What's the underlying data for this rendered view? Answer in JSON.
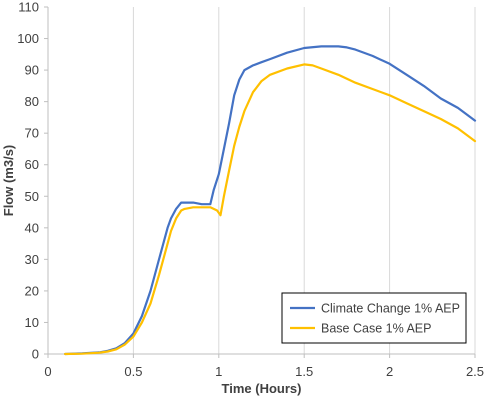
{
  "chart_data": {
    "type": "line",
    "xlabel": "Time (Hours)",
    "ylabel": "Flow (m3/s)",
    "xlim": [
      0,
      2.5
    ],
    "ylim": [
      0,
      110
    ],
    "x_ticks": [
      0,
      0.5,
      1,
      1.5,
      2,
      2.5
    ],
    "x_tick_labels": [
      "0",
      "0.5",
      "1",
      "1.5",
      "2",
      "2.5"
    ],
    "y_ticks": [
      0,
      10,
      20,
      30,
      40,
      50,
      60,
      70,
      80,
      90,
      100,
      110
    ],
    "y_tick_labels": [
      "0",
      "10",
      "20",
      "30",
      "40",
      "50",
      "60",
      "70",
      "80",
      "90",
      "100",
      "110"
    ],
    "grid": "vertical-major",
    "legend_position": "bottom-right",
    "series": [
      {
        "name": "Climate Change 1% AEP",
        "color": "#4472C4",
        "x": [
          0.1,
          0.2,
          0.3,
          0.35,
          0.4,
          0.45,
          0.5,
          0.55,
          0.6,
          0.65,
          0.7,
          0.72,
          0.75,
          0.78,
          0.8,
          0.85,
          0.9,
          0.95,
          0.97,
          1.0,
          1.03,
          1.06,
          1.09,
          1.12,
          1.15,
          1.2,
          1.25,
          1.3,
          1.4,
          1.5,
          1.6,
          1.7,
          1.75,
          1.8,
          1.9,
          2.0,
          2.1,
          2.2,
          2.3,
          2.4,
          2.5
        ],
        "y": [
          0,
          0.2,
          0.5,
          1.0,
          1.8,
          3.5,
          6.5,
          12,
          20,
          30,
          40,
          43,
          46,
          48,
          48,
          48,
          47.5,
          47.5,
          52,
          57,
          65,
          73,
          82,
          87,
          90,
          91.5,
          92.5,
          93.5,
          95.5,
          97,
          97.5,
          97.5,
          97.2,
          96.5,
          94.5,
          92,
          88.5,
          85,
          81,
          78,
          74
        ]
      },
      {
        "name": "Base Case 1% AEP",
        "color": "#FFC000",
        "x": [
          0.1,
          0.2,
          0.3,
          0.35,
          0.4,
          0.45,
          0.5,
          0.55,
          0.6,
          0.65,
          0.7,
          0.72,
          0.75,
          0.78,
          0.8,
          0.85,
          0.9,
          0.95,
          0.99,
          1.01,
          1.03,
          1.06,
          1.09,
          1.12,
          1.15,
          1.2,
          1.25,
          1.3,
          1.4,
          1.5,
          1.55,
          1.6,
          1.7,
          1.8,
          1.9,
          2.0,
          2.1,
          2.2,
          2.3,
          2.4,
          2.5
        ],
        "y": [
          0,
          0.1,
          0.4,
          0.8,
          1.5,
          3,
          5.5,
          10,
          16,
          25,
          35,
          39,
          43,
          45.5,
          46,
          46.5,
          46.5,
          46.5,
          45.5,
          44,
          50,
          58,
          66,
          72,
          77,
          83,
          86.5,
          88.5,
          90.5,
          91.8,
          91.5,
          90.5,
          88.5,
          86,
          84,
          82,
          79.5,
          77,
          74.5,
          71.5,
          67.5
        ]
      }
    ]
  }
}
